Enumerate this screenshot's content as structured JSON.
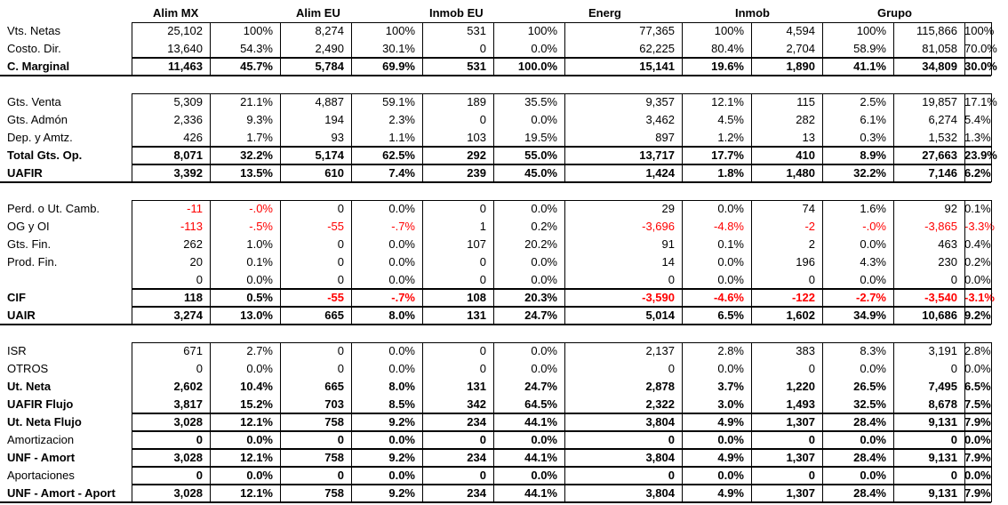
{
  "companies": [
    "Alim MX",
    "Alim EU",
    "Inmob EU",
    "Energ",
    "Inmob",
    "Grupo"
  ],
  "colors": {
    "negative": "#ff0000",
    "text": "#000000",
    "border": "#000000"
  },
  "rows": [
    {
      "label": "Vts. Netas",
      "bold": false,
      "vals": [
        "25,102",
        "100%",
        "8,274",
        "100%",
        "531",
        "100%",
        "77,365",
        "100%",
        "4,594",
        "100%",
        "115,866",
        "100%"
      ]
    },
    {
      "label": "Costo. Dir.",
      "bold": false,
      "vals": [
        "13,640",
        "54.3%",
        "2,490",
        "30.1%",
        "0",
        "0.0%",
        "62,225",
        "80.4%",
        "2,704",
        "58.9%",
        "81,058",
        "70.0%"
      ]
    },
    {
      "label": "C. Marginal",
      "bold": true,
      "vals": [
        "11,463",
        "45.7%",
        "5,784",
        "69.9%",
        "531",
        "100.0%",
        "15,141",
        "19.6%",
        "1,890",
        "41.1%",
        "34,809",
        "30.0%"
      ]
    },
    {
      "label": "Gts. Venta",
      "bold": false,
      "vals": [
        "5,309",
        "21.1%",
        "4,887",
        "59.1%",
        "189",
        "35.5%",
        "9,357",
        "12.1%",
        "115",
        "2.5%",
        "19,857",
        "17.1%"
      ]
    },
    {
      "label": "Gts. Admón",
      "bold": false,
      "vals": [
        "2,336",
        "9.3%",
        "194",
        "2.3%",
        "0",
        "0.0%",
        "3,462",
        "4.5%",
        "282",
        "6.1%",
        "6,274",
        "5.4%"
      ]
    },
    {
      "label": "Dep. y Amtz.",
      "bold": false,
      "vals": [
        "426",
        "1.7%",
        "93",
        "1.1%",
        "103",
        "19.5%",
        "897",
        "1.2%",
        "13",
        "0.3%",
        "1,532",
        "1.3%"
      ]
    },
    {
      "label": "Total Gts. Op.",
      "bold": true,
      "vals": [
        "8,071",
        "32.2%",
        "5,174",
        "62.5%",
        "292",
        "55.0%",
        "13,717",
        "17.7%",
        "410",
        "8.9%",
        "27,663",
        "23.9%"
      ]
    },
    {
      "label": "UAFIR",
      "bold": true,
      "vals": [
        "3,392",
        "13.5%",
        "610",
        "7.4%",
        "239",
        "45.0%",
        "1,424",
        "1.8%",
        "1,480",
        "32.2%",
        "7,146",
        "6.2%"
      ]
    },
    {
      "label": "Perd. o Ut. Camb.",
      "bold": false,
      "vals": [
        "-11",
        "-.0%",
        "0",
        "0.0%",
        "0",
        "0.0%",
        "29",
        "0.0%",
        "74",
        "1.6%",
        "92",
        "0.1%"
      ]
    },
    {
      "label": "OG y OI",
      "bold": false,
      "vals": [
        "-113",
        "-.5%",
        "-55",
        "-.7%",
        "1",
        "0.2%",
        "-3,696",
        "-4.8%",
        "-2",
        "-.0%",
        "-3,865",
        "-3.3%"
      ]
    },
    {
      "label": "Gts. Fin.",
      "bold": false,
      "vals": [
        "262",
        "1.0%",
        "0",
        "0.0%",
        "107",
        "20.2%",
        "91",
        "0.1%",
        "2",
        "0.0%",
        "463",
        "0.4%"
      ]
    },
    {
      "label": "Prod. Fin.",
      "bold": false,
      "vals": [
        "20",
        "0.1%",
        "0",
        "0.0%",
        "0",
        "0.0%",
        "14",
        "0.0%",
        "196",
        "4.3%",
        "230",
        "0.2%"
      ]
    },
    {
      "label": "",
      "bold": false,
      "vals": [
        "0",
        "0.0%",
        "0",
        "0.0%",
        "0",
        "0.0%",
        "0",
        "0.0%",
        "0",
        "0.0%",
        "0",
        "0.0%"
      ]
    },
    {
      "label": "CIF",
      "bold": true,
      "vals": [
        "118",
        "0.5%",
        "-55",
        "-.7%",
        "108",
        "20.3%",
        "-3,590",
        "-4.6%",
        "-122",
        "-2.7%",
        "-3,540",
        "-3.1%"
      ]
    },
    {
      "label": "UAIR",
      "bold": true,
      "vals": [
        "3,274",
        "13.0%",
        "665",
        "8.0%",
        "131",
        "24.7%",
        "5,014",
        "6.5%",
        "1,602",
        "34.9%",
        "10,686",
        "9.2%"
      ]
    },
    {
      "label": "ISR",
      "bold": false,
      "vals": [
        "671",
        "2.7%",
        "0",
        "0.0%",
        "0",
        "0.0%",
        "2,137",
        "2.8%",
        "383",
        "8.3%",
        "3,191",
        "2.8%"
      ]
    },
    {
      "label": "OTROS",
      "bold": false,
      "vals": [
        "0",
        "0.0%",
        "0",
        "0.0%",
        "0",
        "0.0%",
        "0",
        "0.0%",
        "0",
        "0.0%",
        "0",
        "0.0%"
      ]
    },
    {
      "label": "Ut. Neta",
      "bold": true,
      "vals": [
        "2,602",
        "10.4%",
        "665",
        "8.0%",
        "131",
        "24.7%",
        "2,878",
        "3.7%",
        "1,220",
        "26.5%",
        "7,495",
        "6.5%"
      ]
    },
    {
      "label": "UAFIR Flujo",
      "bold": true,
      "vals": [
        "3,817",
        "15.2%",
        "703",
        "8.5%",
        "342",
        "64.5%",
        "2,322",
        "3.0%",
        "1,493",
        "32.5%",
        "8,678",
        "7.5%"
      ]
    },
    {
      "label": "Ut. Neta Flujo",
      "bold": true,
      "vals": [
        "3,028",
        "12.1%",
        "758",
        "9.2%",
        "234",
        "44.1%",
        "3,804",
        "4.9%",
        "1,307",
        "28.4%",
        "9,131",
        "7.9%"
      ]
    },
    {
      "label": "Amortizacion",
      "bold": false,
      "boldVals": true,
      "vals": [
        "0",
        "0.0%",
        "0",
        "0.0%",
        "0",
        "0.0%",
        "0",
        "0.0%",
        "0",
        "0.0%",
        "0",
        "0.0%"
      ]
    },
    {
      "label": "UNF - Amort",
      "bold": true,
      "vals": [
        "3,028",
        "12.1%",
        "758",
        "9.2%",
        "234",
        "44.1%",
        "3,804",
        "4.9%",
        "1,307",
        "28.4%",
        "9,131",
        "7.9%"
      ]
    },
    {
      "label": "Aportaciones",
      "bold": false,
      "boldVals": true,
      "vals": [
        "0",
        "0.0%",
        "0",
        "0.0%",
        "0",
        "0.0%",
        "0",
        "0.0%",
        "0",
        "0.0%",
        "0",
        "0.0%"
      ]
    },
    {
      "label": "UNF - Amort - Aport",
      "bold": true,
      "vals": [
        "3,028",
        "12.1%",
        "758",
        "9.2%",
        "234",
        "44.1%",
        "3,804",
        "4.9%",
        "1,307",
        "28.4%",
        "9,131",
        "7.9%"
      ]
    }
  ]
}
